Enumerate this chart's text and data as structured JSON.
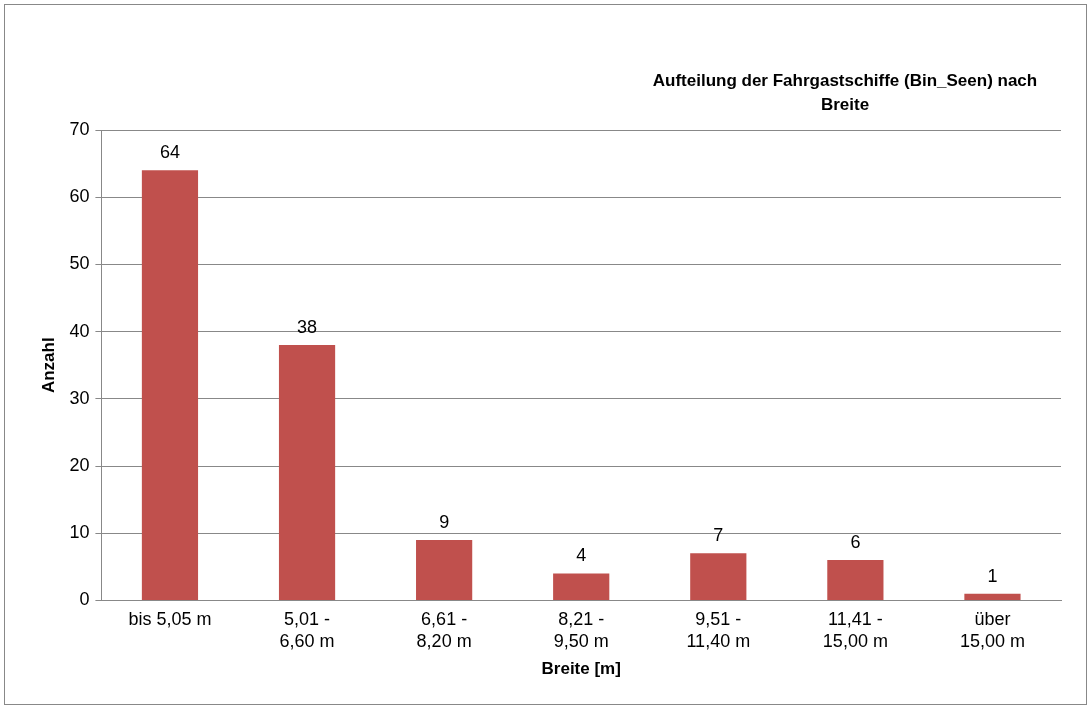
{
  "chart_data": {
    "type": "bar",
    "title": "Aufteilung der Fahrgastschiffe (Bin_Seen) nach Breite",
    "xlabel": "Breite [m]",
    "ylabel": "Anzahl",
    "categories": [
      "bis 5,05 m",
      "5,01 - 6,60 m",
      "6,61 - 8,20 m",
      "8,21 - 9,50 m",
      "9,51 - 11,40 m",
      "11,41 - 15,00 m",
      "über 15,00 m"
    ],
    "values": [
      64,
      38,
      9,
      4,
      7,
      6,
      1
    ],
    "color": "#c0504d",
    "ylim": [
      0,
      70
    ],
    "yticks": [
      0,
      10,
      20,
      30,
      40,
      50,
      60,
      70
    ],
    "grid": "y",
    "data_labels": true,
    "legend": false
  }
}
